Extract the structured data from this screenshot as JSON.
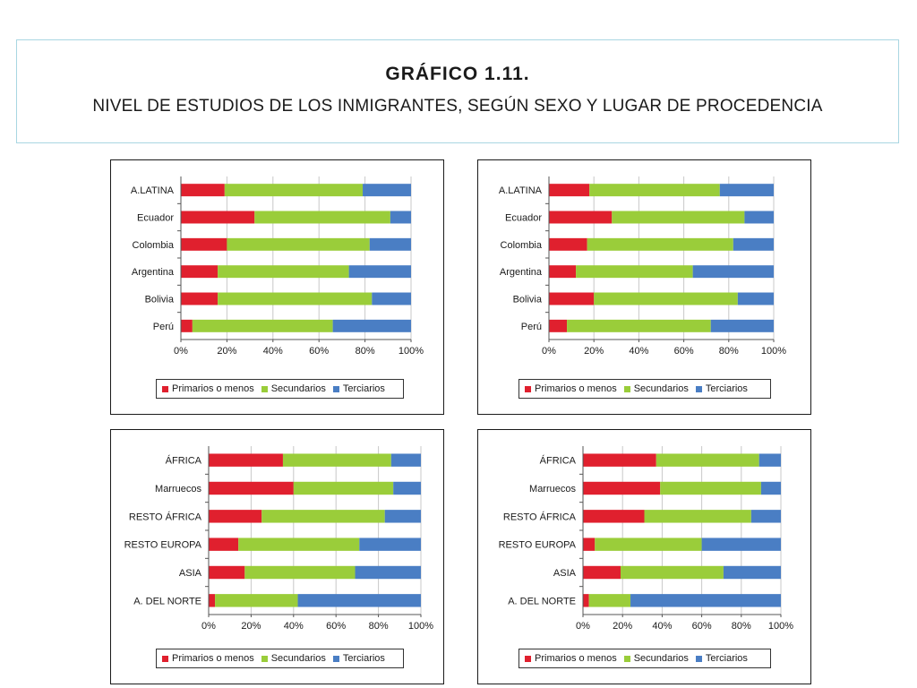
{
  "header": {
    "title": "GRÁFICO 1.11.",
    "subtitle": "NIVEL DE ESTUDIOS DE LOS INMIGRANTES, SEGÚN SEXO Y LUGAR DE PROCEDENCIA"
  },
  "colors": {
    "primarios": "#e0202e",
    "secundarios": "#9acd3a",
    "terciarios": "#4a7ec4"
  },
  "legend": [
    "Primarios o menos",
    "Secundarios",
    "Terciarios"
  ],
  "chart_data": [
    {
      "type": "bar",
      "orientation": "horizontal",
      "stacked": "percent",
      "categories": [
        "A.LATINA",
        "Ecuador",
        "Colombia",
        "Argentina",
        "Bolivia",
        "Perú"
      ],
      "series": [
        {
          "name": "Primarios o menos",
          "values": [
            19,
            32,
            20,
            16,
            16,
            5
          ]
        },
        {
          "name": "Secundarios",
          "values": [
            60,
            59,
            62,
            57,
            67,
            61
          ]
        },
        {
          "name": "Terciarios",
          "values": [
            21,
            9,
            18,
            27,
            17,
            34
          ]
        }
      ],
      "xticks": [
        "0%",
        "20%",
        "40%",
        "60%",
        "80%",
        "100%"
      ],
      "xlim": [
        0,
        100
      ],
      "legend_position": "bottom"
    },
    {
      "type": "bar",
      "orientation": "horizontal",
      "stacked": "percent",
      "categories": [
        "A.LATINA",
        "Ecuador",
        "Colombia",
        "Argentina",
        "Bolivia",
        "Perú"
      ],
      "series": [
        {
          "name": "Primarios o menos",
          "values": [
            18,
            28,
            17,
            12,
            20,
            8
          ]
        },
        {
          "name": "Secundarios",
          "values": [
            58,
            59,
            65,
            52,
            64,
            64
          ]
        },
        {
          "name": "Terciarios",
          "values": [
            24,
            13,
            18,
            36,
            16,
            28
          ]
        }
      ],
      "xticks": [
        "0%",
        "20%",
        "40%",
        "60%",
        "80%",
        "100%"
      ],
      "xlim": [
        0,
        100
      ],
      "legend_position": "bottom"
    },
    {
      "type": "bar",
      "orientation": "horizontal",
      "stacked": "percent",
      "categories": [
        "ÁFRICA",
        "Marruecos",
        "RESTO ÁFRICA",
        "RESTO EUROPA",
        "ASIA",
        "A. DEL NORTE"
      ],
      "series": [
        {
          "name": "Primarios o menos",
          "values": [
            35,
            40,
            25,
            14,
            17,
            3
          ]
        },
        {
          "name": "Secundarios",
          "values": [
            51,
            47,
            58,
            57,
            52,
            39
          ]
        },
        {
          "name": "Terciarios",
          "values": [
            14,
            13,
            17,
            29,
            31,
            58
          ]
        }
      ],
      "xticks": [
        "0%",
        "20%",
        "40%",
        "60%",
        "80%",
        "100%"
      ],
      "xlim": [
        0,
        100
      ],
      "legend_position": "bottom"
    },
    {
      "type": "bar",
      "orientation": "horizontal",
      "stacked": "percent",
      "categories": [
        "ÁFRICA",
        "Marruecos",
        "RESTO ÁFRICA",
        "RESTO EUROPA",
        "ASIA",
        "A. DEL NORTE"
      ],
      "series": [
        {
          "name": "Primarios o menos",
          "values": [
            37,
            39,
            31,
            6,
            19,
            3
          ]
        },
        {
          "name": "Secundarios",
          "values": [
            52,
            51,
            54,
            54,
            52,
            21
          ]
        },
        {
          "name": "Terciarios",
          "values": [
            11,
            10,
            15,
            40,
            29,
            76
          ]
        }
      ],
      "xticks": [
        "0%",
        "20%",
        "40%",
        "60%",
        "80%",
        "100%"
      ],
      "xlim": [
        0,
        100
      ],
      "legend_position": "bottom"
    }
  ]
}
